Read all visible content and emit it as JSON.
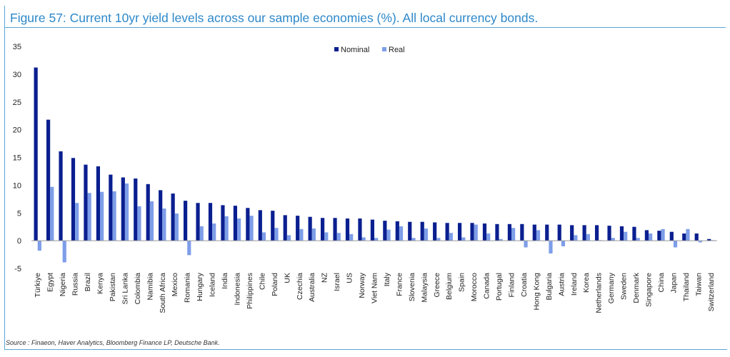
{
  "title": "Figure 57: Current 10yr yield levels across our sample economies (%). All local currency bonds.",
  "source": "Source : Finaeon, Haver Analytics, Bloomberg Finance LP, Deutsche Bank.",
  "colors": {
    "nominal": "#0a1f8f",
    "real": "#7e9ee8",
    "title": "#2d88c9",
    "frame": "#5aa7d6"
  },
  "chart_data": {
    "type": "bar",
    "title": "",
    "xlabel": "",
    "ylabel": "",
    "ylim": [
      -5,
      35
    ],
    "yticks": [
      -5,
      0,
      5,
      10,
      15,
      20,
      25,
      30,
      35
    ],
    "grid": false,
    "legend": "top-center",
    "categories": [
      "Türkiye",
      "Egypt",
      "Nigeria",
      "Russia",
      "Brazil",
      "Kenya",
      "Pakistan",
      "Sri Lanka",
      "Colombia",
      "Namibia",
      "South Africa",
      "Mexico",
      "Romania",
      "Hungary",
      "Iceland",
      "India",
      "Indonesia",
      "Philippines",
      "Chile",
      "Poland",
      "UK",
      "Czechia",
      "Australia",
      "NZ",
      "Israel",
      "US",
      "Norway",
      "Viet Nam",
      "Italy",
      "France",
      "Slovenia",
      "Malaysia",
      "Greece",
      "Belgium",
      "Spain",
      "Morocco",
      "Canada",
      "Portugal",
      "Finland",
      "Croatia",
      "Hong Kong",
      "Bulgaria",
      "Austria",
      "Ireland",
      "Korea",
      "Netherlands",
      "Germany",
      "Sweden",
      "Denmark",
      "Singapore",
      "China",
      "Japan",
      "Thailand",
      "Taiwan",
      "Switzerland"
    ],
    "series": [
      {
        "name": "Nominal",
        "values": [
          31.2,
          21.8,
          16.1,
          14.9,
          13.7,
          13.4,
          11.9,
          11.4,
          11.2,
          10.2,
          9.1,
          8.5,
          7.2,
          6.8,
          6.8,
          6.4,
          6.3,
          5.9,
          5.5,
          5.4,
          4.6,
          4.5,
          4.3,
          4.1,
          4.1,
          4.0,
          4.0,
          3.8,
          3.6,
          3.5,
          3.4,
          3.4,
          3.3,
          3.2,
          3.2,
          3.2,
          3.1,
          3.0,
          3.0,
          3.0,
          2.9,
          2.9,
          2.9,
          2.8,
          2.8,
          2.8,
          2.7,
          2.6,
          2.5,
          1.9,
          1.8,
          1.6,
          1.3,
          1.3,
          0.3
        ]
      },
      {
        "name": "Real",
        "values": [
          -1.8,
          9.7,
          -3.9,
          6.8,
          8.6,
          8.8,
          8.9,
          10.3,
          6.2,
          7.1,
          5.8,
          4.9,
          -2.6,
          2.6,
          3.1,
          4.4,
          4.0,
          4.5,
          1.5,
          2.3,
          1.0,
          2.1,
          2.2,
          1.5,
          1.4,
          1.2,
          0.6,
          0.5,
          2.0,
          2.6,
          0.5,
          2.2,
          0.5,
          1.4,
          0.6,
          2.9,
          1.3,
          0.3,
          2.3,
          -1.2,
          1.9,
          -2.3,
          -1.0,
          1.0,
          1.2,
          0.1,
          0.5,
          1.6,
          0.5,
          1.3,
          2.1,
          -1.2,
          2.1,
          -0.3,
          0.1
        ]
      }
    ]
  }
}
